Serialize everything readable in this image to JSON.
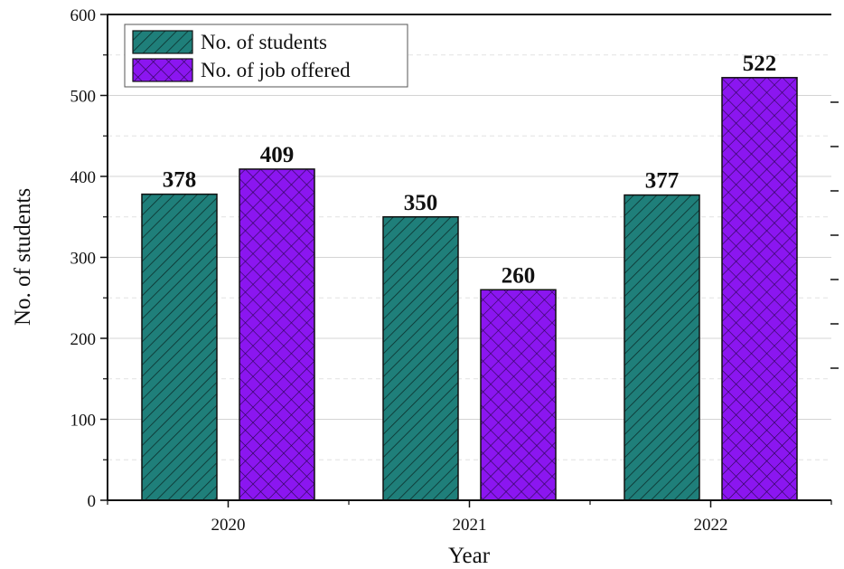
{
  "chart_data": {
    "type": "bar",
    "categories": [
      "2020",
      "2021",
      "2022"
    ],
    "series": [
      {
        "name": "No. of students",
        "values": [
          378,
          350,
          377
        ],
        "color": "#1f7f7a",
        "pattern": "diagonal-hatch"
      },
      {
        "name": "No. of job offered",
        "values": [
          409,
          260,
          522
        ],
        "color": "#8b16f0",
        "pattern": "cross-hatch"
      }
    ],
    "data_labels": [
      [
        "378",
        "350",
        "377"
      ],
      [
        "409",
        "260",
        "522"
      ]
    ],
    "xlabel": "Year",
    "ylabel": "No. of students",
    "ylim": [
      0,
      600
    ],
    "yticks": [
      "0",
      "100",
      "200",
      "300",
      "400",
      "500",
      "600"
    ],
    "grid": true,
    "legend_position": "top-left"
  }
}
